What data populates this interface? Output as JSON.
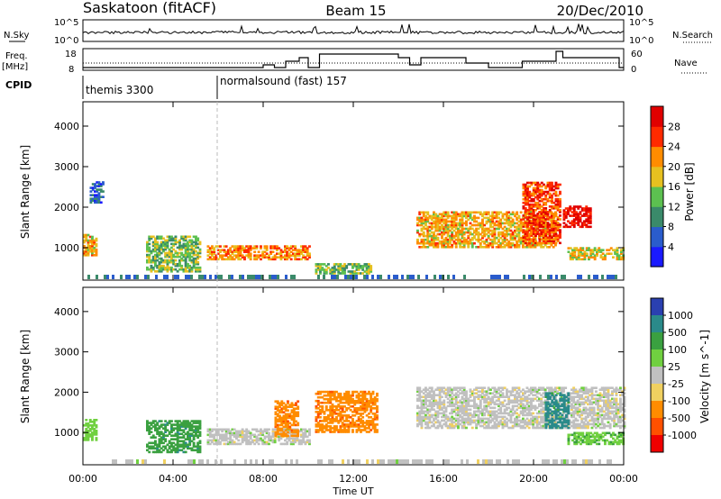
{
  "header": {
    "station": "Saskatoon (fitACF)",
    "beam": "Beam 15",
    "date": "20/Dec/2010"
  },
  "left_labels": {
    "nsky": "N.Sky",
    "freq": "Freq.",
    "mhz": "[MHz]",
    "cpid": "CPID"
  },
  "right_labels": {
    "nsearch": "N.Search",
    "nave": "Nave"
  },
  "noise_axis": {
    "left_ticks": [
      "10^5",
      "10^0"
    ],
    "right_ticks": [
      "10^5",
      "10^0"
    ]
  },
  "freq_axis": {
    "left_ticks": [
      "18",
      "8"
    ],
    "right_ticks": [
      "60",
      "0"
    ]
  },
  "cpid_segments": [
    {
      "label": "themis 3300",
      "start_hour": 0
    },
    {
      "label": "normalsound (fast) 157",
      "start_hour": 6.0
    }
  ],
  "x_axis": {
    "label": "Time UT",
    "ticks": [
      "00:00",
      "04:00",
      "08:00",
      "12:00",
      "16:00",
      "20:00",
      "00:00"
    ]
  },
  "chart_data": [
    {
      "type": "heatmap",
      "title": "Power",
      "ylabel": "Slant Range [km]",
      "xlabel": "",
      "xlim_hours": [
        0,
        24
      ],
      "ylim": [
        200,
        4600
      ],
      "yticks": [
        "1000",
        "2000",
        "3000",
        "4000"
      ],
      "colorbar": {
        "label": "Power [dB]",
        "ticks": [
          "4",
          "8",
          "12",
          "16",
          "20",
          "24",
          "28"
        ],
        "colors": [
          "#1a1aff",
          "#2a5ccc",
          "#3a8a6a",
          "#5cc050",
          "#e6c020",
          "#ff8c00",
          "#ff2a00",
          "#e00000"
        ]
      },
      "echo_regions": [
        {
          "t_start": 0.0,
          "t_end": 0.6,
          "r_start": 800,
          "r_end": 1300,
          "power_db": 20
        },
        {
          "t_start": 0.3,
          "t_end": 0.9,
          "r_start": 2100,
          "r_end": 2600,
          "power_db": 6
        },
        {
          "t_start": 2.8,
          "t_end": 5.2,
          "r_start": 400,
          "r_end": 1300,
          "power_db": 14
        },
        {
          "t_start": 5.5,
          "t_end": 10.0,
          "r_start": 700,
          "r_end": 1050,
          "power_db": 22
        },
        {
          "t_start": 10.3,
          "t_end": 12.8,
          "r_start": 350,
          "r_end": 600,
          "power_db": 14
        },
        {
          "t_start": 14.8,
          "t_end": 21.0,
          "r_start": 1000,
          "r_end": 1900,
          "power_db": 20
        },
        {
          "t_start": 19.5,
          "t_end": 21.2,
          "r_start": 1100,
          "r_end": 2600,
          "power_db": 26
        },
        {
          "t_start": 21.3,
          "t_end": 22.5,
          "r_start": 1500,
          "r_end": 2000,
          "power_db": 30
        },
        {
          "t_start": 21.5,
          "t_end": 24.0,
          "r_start": 700,
          "r_end": 1000,
          "power_db": 18
        }
      ]
    },
    {
      "type": "heatmap",
      "title": "Velocity",
      "ylabel": "Slant Range [km]",
      "xlabel": "Time UT",
      "xlim_hours": [
        0,
        24
      ],
      "ylim": [
        200,
        4600
      ],
      "yticks": [
        "1000",
        "2000",
        "3000",
        "4000"
      ],
      "colorbar": {
        "label": "Velocity [m s^-1]",
        "ticks": [
          "1000",
          "500",
          "100",
          "25",
          "-25",
          "-100",
          "-500",
          "-1000"
        ],
        "colors": [
          "#2a40b0",
          "#2a8a8a",
          "#3aa040",
          "#70d040",
          "#c0c0c0",
          "#f0d060",
          "#ff8c00",
          "#ff5000",
          "#f00000"
        ]
      },
      "echo_regions": [
        {
          "t_start": 0.0,
          "t_end": 0.6,
          "r_start": 800,
          "r_end": 1300,
          "velocity": 60
        },
        {
          "t_start": 2.8,
          "t_end": 5.2,
          "r_start": 500,
          "r_end": 1300,
          "velocity": 400
        },
        {
          "t_start": 5.5,
          "t_end": 10.0,
          "r_start": 700,
          "r_end": 1100,
          "velocity": 0
        },
        {
          "t_start": 8.5,
          "t_end": 9.5,
          "r_start": 900,
          "r_end": 1800,
          "velocity": -400
        },
        {
          "t_start": 10.3,
          "t_end": 13.0,
          "r_start": 1000,
          "r_end": 2000,
          "velocity": -400
        },
        {
          "t_start": 14.8,
          "t_end": 24.0,
          "r_start": 1100,
          "r_end": 2100,
          "velocity": 0
        },
        {
          "t_start": 20.5,
          "t_end": 21.5,
          "r_start": 1100,
          "r_end": 2000,
          "velocity": 700
        },
        {
          "t_start": 21.5,
          "t_end": 24.0,
          "r_start": 700,
          "r_end": 1000,
          "velocity": 80
        }
      ]
    }
  ]
}
